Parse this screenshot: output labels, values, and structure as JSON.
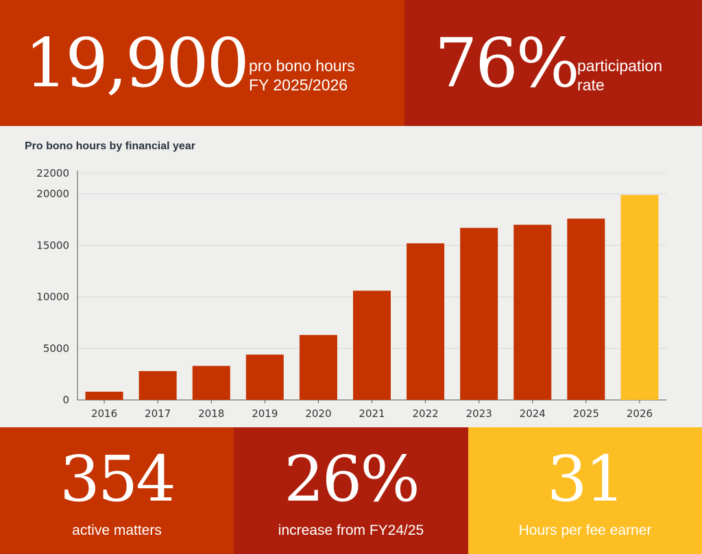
{
  "top": {
    "hours_value": "19,900",
    "hours_label_line1": "pro bono hours",
    "hours_label_line2": "FY 2025/2026",
    "rate_value": "76%",
    "rate_label_line1": "participation",
    "rate_label_line2": "rate"
  },
  "colors": {
    "orange": "#c53300",
    "red": "#ad1f0c",
    "yellow": "#fdbe23",
    "background": "#efefed",
    "gridline": "#d8d8d8",
    "axis": "#555555",
    "title_text": "#2a3340"
  },
  "chart_data": {
    "type": "bar",
    "title": "Pro bono hours by financial year",
    "xlabel": "",
    "ylabel": "",
    "categories": [
      "2016",
      "2017",
      "2018",
      "2019",
      "2020",
      "2021",
      "2022",
      "2023",
      "2024",
      "2025",
      "2026"
    ],
    "values": [
      800,
      2800,
      3300,
      4400,
      6300,
      10600,
      15200,
      16700,
      17000,
      17600,
      19900
    ],
    "highlight_category": "2026",
    "ylim": [
      0,
      22000
    ],
    "yticks": [
      0,
      5000,
      10000,
      15000,
      20000,
      22000
    ],
    "grid": true,
    "legend": "none"
  },
  "bottom": [
    {
      "value": "354",
      "label": "active matters"
    },
    {
      "value": "26%",
      "label": "increase from FY24/25"
    },
    {
      "value": "31",
      "label": "Hours per fee earner"
    }
  ]
}
